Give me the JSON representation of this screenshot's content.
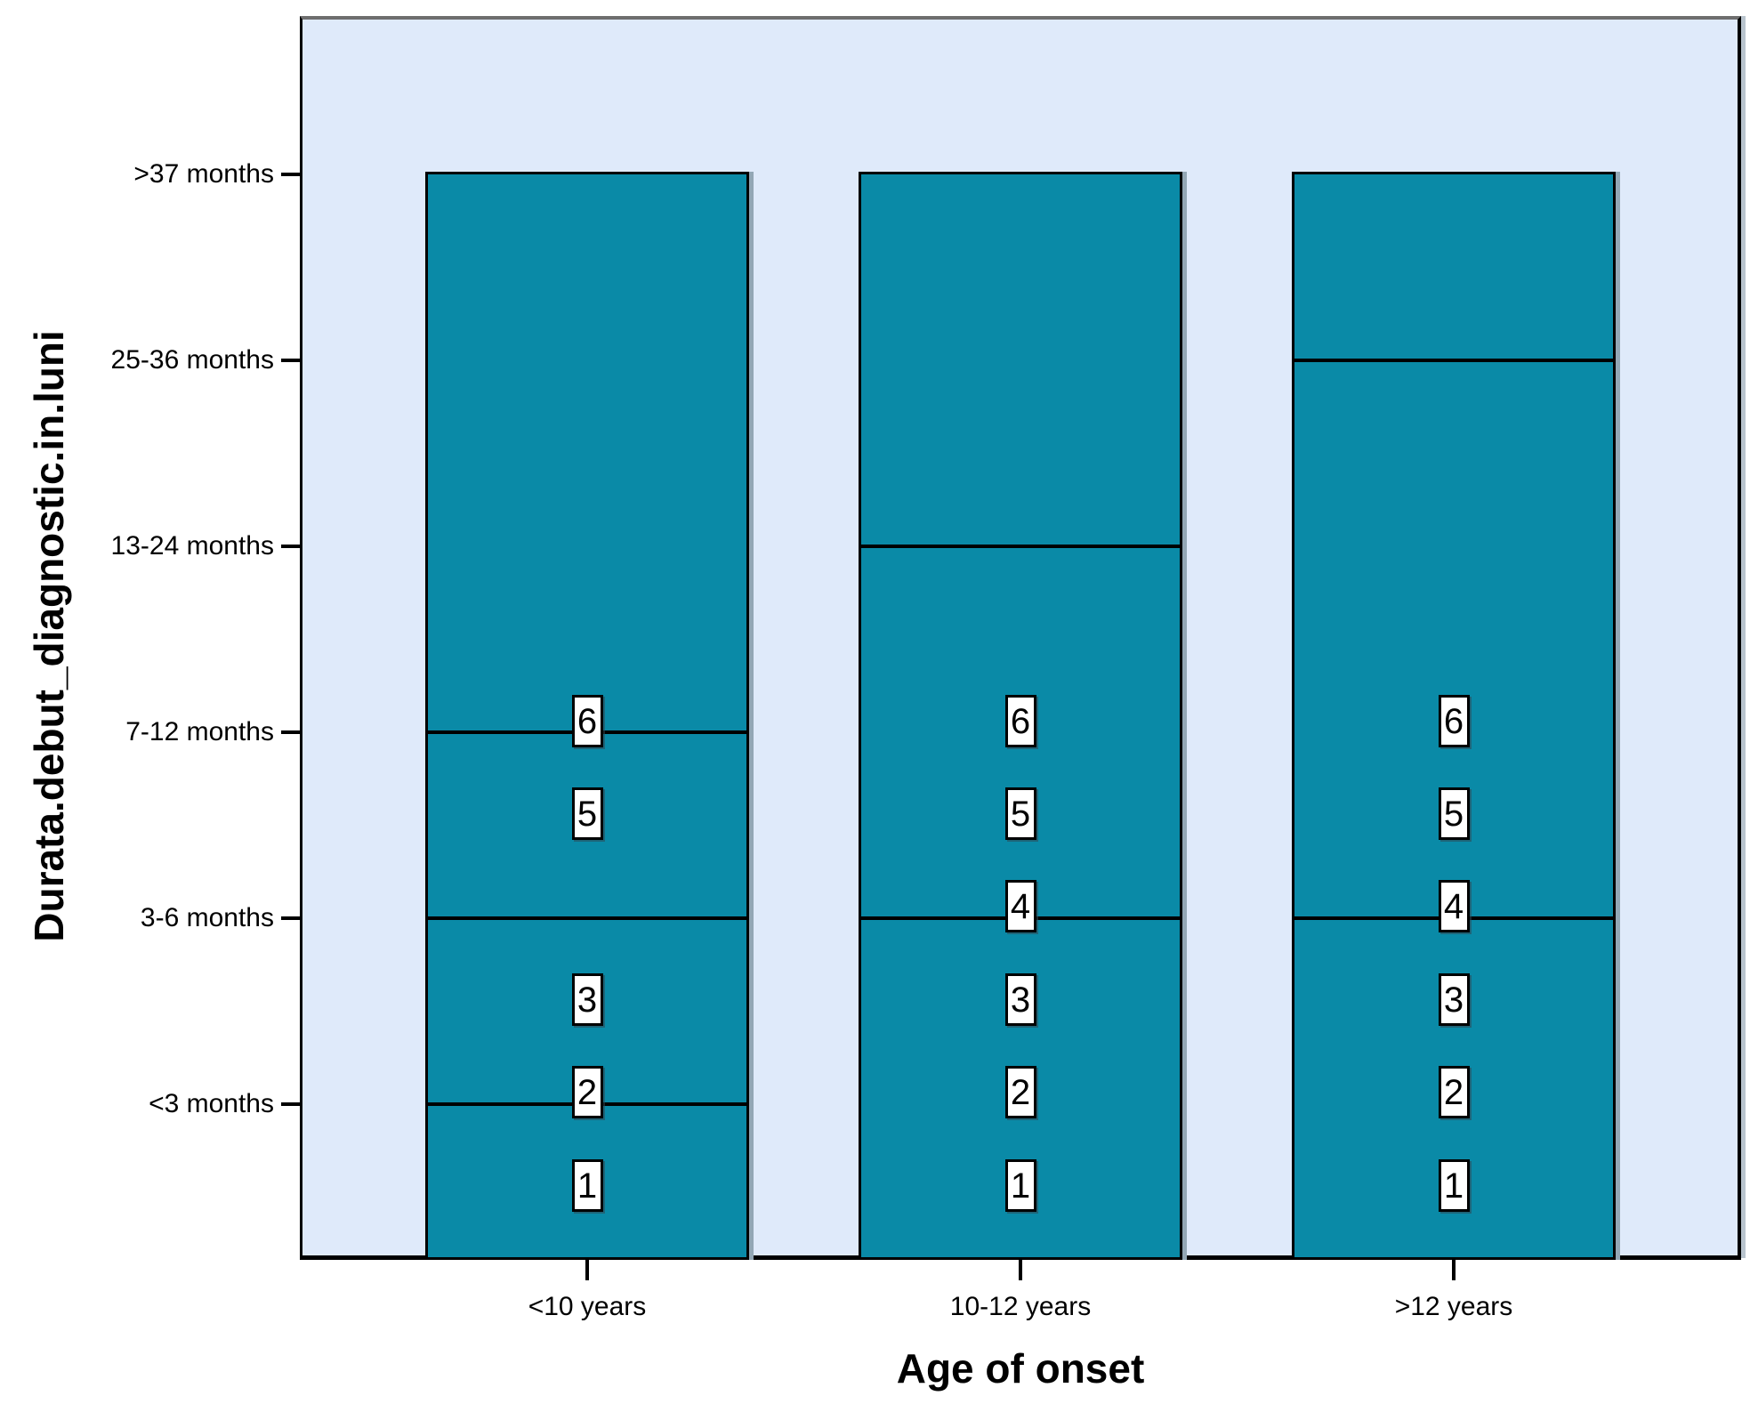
{
  "figure": {
    "colors": {
      "bar_fill": "#0a8aa7",
      "plot_background": "#dfeafa",
      "frame_top_gray": "#6e6e6e",
      "axis_black": "#000000",
      "bar_shadow": "#93a7b5",
      "marker_fill": "#ffffff",
      "page_background": "#ffffff"
    }
  },
  "y_axis": {
    "title": "Durata.debut_diagnostic.in.luni",
    "tick_labels_top_to_bottom": [
      ">37 months",
      "25-36 months",
      "13-24 months",
      "7-12 months",
      "3-6 months",
      "<3 months"
    ]
  },
  "x_axis": {
    "title": "Age of onset",
    "tick_labels": [
      "<10 years",
      "10-12 years",
      ">12 years"
    ]
  },
  "chart_data": {
    "type": "bar",
    "subtype": "stacked-categorical-spss",
    "title": "",
    "xlabel": "Age of onset",
    "ylabel": "Durata.debut_diagnostic.in.luni",
    "x_categories": [
      "<10 years",
      "10-12 years",
      ">12 years"
    ],
    "y_categories_top_to_bottom": [
      ">37 months",
      "25-36 months",
      "13-24 months",
      "7-12 months",
      "3-6 months",
      "<3 months"
    ],
    "grid": "off",
    "legend": "none",
    "bars": [
      {
        "x": "<10 years",
        "bar_top": ">37 months",
        "segment_boundaries": [
          "7-12 months",
          "3-6 months",
          "<3 months"
        ],
        "case_markers_top_to_bottom": [
          "6",
          "5",
          "3",
          "2",
          "1"
        ]
      },
      {
        "x": "10-12 years",
        "bar_top": ">37 months",
        "segment_boundaries": [
          "13-24 months",
          "3-6 months"
        ],
        "case_markers_top_to_bottom": [
          "6",
          "5",
          "4",
          "3",
          "2",
          "1"
        ]
      },
      {
        "x": ">12 years",
        "bar_top": ">37 months",
        "segment_boundaries": [
          "25-36 months",
          "3-6 months"
        ],
        "case_markers_top_to_bottom": [
          "6",
          "5",
          "4",
          "3",
          "2",
          "1"
        ]
      }
    ]
  }
}
